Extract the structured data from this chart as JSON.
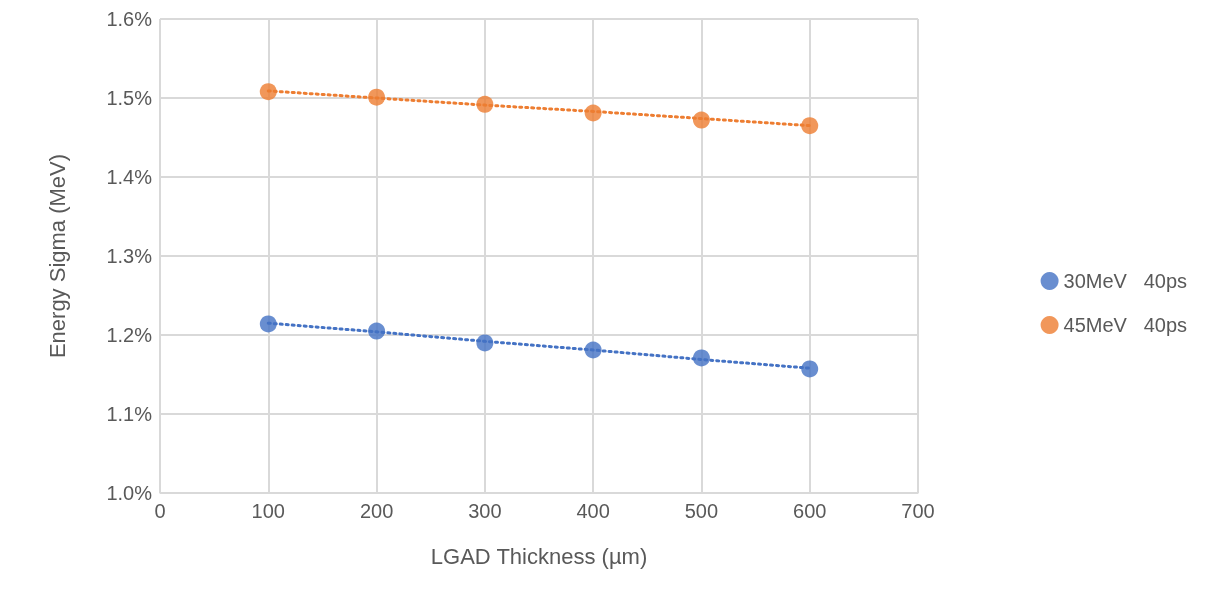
{
  "chart_data": {
    "type": "scatter",
    "xlabel": "LGAD Thickness (µm)",
    "ylabel": "Energy Sigma (MeV)",
    "xlim": [
      0,
      700
    ],
    "xticks": [
      0,
      100,
      200,
      300,
      400,
      500,
      600,
      700
    ],
    "ylim": [
      1.0,
      1.6
    ],
    "yticks": [
      {
        "value": 1.0,
        "label": "1.0%"
      },
      {
        "value": 1.1,
        "label": "1.1%"
      },
      {
        "value": 1.2,
        "label": "1.2%"
      },
      {
        "value": 1.3,
        "label": "1.3%"
      },
      {
        "value": 1.4,
        "label": "1.4%"
      },
      {
        "value": 1.5,
        "label": "1.5%"
      },
      {
        "value": 1.6,
        "label": "1.6%"
      }
    ],
    "grid": true,
    "legend": "right",
    "marker": "circle",
    "x": [
      100,
      200,
      300,
      400,
      500,
      600
    ],
    "series": [
      {
        "name": "30MeV   40ps",
        "color": "#4472c4",
        "values": [
          1.214,
          1.205,
          1.19,
          1.181,
          1.171,
          1.157
        ]
      },
      {
        "name": "45MeV   40ps",
        "color": "#ed7d31",
        "values": [
          1.508,
          1.501,
          1.492,
          1.481,
          1.472,
          1.465
        ]
      },
      {
        "type": "line",
        "color": "#4472c4",
        "values": [
          1.215,
          1.204,
          1.192,
          1.181,
          1.169,
          1.158
        ],
        "line_style": "dotted",
        "marker": "none"
      },
      {
        "type": "line",
        "color": "#ed7d31",
        "values": [
          1.509,
          1.5,
          1.491,
          1.483,
          1.474,
          1.465
        ],
        "line_style": "dotted",
        "marker": "none"
      }
    ]
  }
}
